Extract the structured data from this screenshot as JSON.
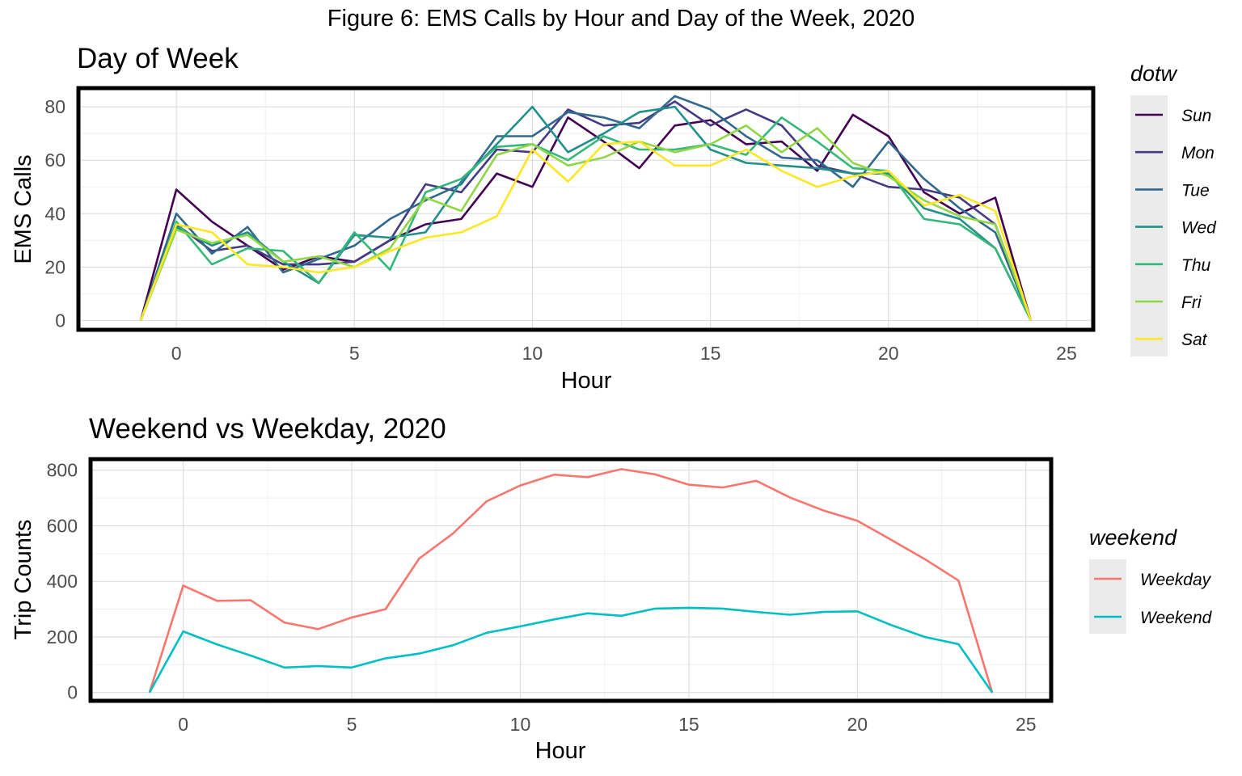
{
  "figure_title": "Figure 6: EMS Calls by Hour and Day of the Week, 2020",
  "colors": {
    "Sun": "#440154",
    "Mon": "#443A83",
    "Tue": "#31688E",
    "Wed": "#21908C",
    "Thu": "#35B779",
    "Fri": "#8FD744",
    "Sat": "#FDE725",
    "Weekday": "#F8766D",
    "Weekend": "#00BFC4",
    "grid": "#d9d9d9",
    "panel_border": "#000000",
    "legend_key_bg": "#ebebeb"
  },
  "chart_data": [
    {
      "type": "line",
      "title": "Day of Week",
      "xlabel": "Hour",
      "ylabel": "EMS Calls",
      "xlim": [
        -2.75,
        25.75
      ],
      "ylim": [
        -3.5,
        87
      ],
      "xticks": [
        0,
        5,
        10,
        15,
        20,
        25
      ],
      "yticks": [
        0,
        20,
        40,
        60,
        80
      ],
      "grid": true,
      "legend": {
        "title": "dotw",
        "position": "right"
      },
      "x": [
        -1,
        0,
        1,
        2,
        3,
        4,
        5,
        6,
        7,
        8,
        9,
        10,
        11,
        12,
        13,
        14,
        15,
        16,
        17,
        18,
        19,
        20,
        21,
        22,
        23,
        24
      ],
      "series": [
        {
          "name": "Sun",
          "values": [
            0,
            49,
            37,
            28,
            19,
            24,
            22,
            30,
            36,
            38,
            55,
            50,
            76,
            67,
            57,
            73,
            75,
            66,
            67,
            56,
            77,
            69,
            48,
            40,
            46,
            0
          ]
        },
        {
          "name": "Mon",
          "values": [
            0,
            36,
            26,
            28,
            21,
            21,
            22,
            30,
            51,
            48,
            64,
            63,
            79,
            73,
            74,
            82,
            73,
            79,
            73,
            58,
            55,
            50,
            49,
            46,
            36,
            0
          ]
        },
        {
          "name": "Tue",
          "values": [
            0,
            40,
            25,
            35,
            18,
            23,
            28,
            38,
            45,
            51,
            69,
            69,
            78,
            76,
            72,
            84,
            79,
            69,
            61,
            60,
            50,
            67,
            53,
            42,
            33,
            0
          ]
        },
        {
          "name": "Wed",
          "values": [
            0,
            35,
            28,
            33,
            22,
            14,
            32,
            31,
            33,
            52,
            66,
            80,
            63,
            70,
            78,
            80,
            64,
            59,
            58,
            57,
            55,
            55,
            42,
            38,
            27,
            0
          ]
        },
        {
          "name": "Thu",
          "values": [
            0,
            37,
            21,
            27,
            26,
            14,
            33,
            19,
            48,
            53,
            65,
            66,
            60,
            69,
            64,
            64,
            66,
            62,
            76,
            67,
            57,
            56,
            38,
            36,
            27,
            0
          ]
        },
        {
          "name": "Fri",
          "values": [
            0,
            34,
            29,
            32,
            22,
            24,
            20,
            27,
            46,
            41,
            62,
            66,
            58,
            61,
            67,
            63,
            66,
            73,
            63,
            72,
            59,
            54,
            45,
            39,
            36,
            0
          ]
        },
        {
          "name": "Sat",
          "values": [
            0,
            36,
            33,
            21,
            20,
            18,
            20,
            26,
            31,
            33,
            39,
            64,
            52,
            66,
            67,
            58,
            58,
            64,
            56,
            50,
            54,
            56,
            43,
            47,
            41,
            0
          ]
        }
      ]
    },
    {
      "type": "line",
      "title": "Weekend vs Weekday, 2020",
      "xlabel": "Hour",
      "ylabel": "Trip Counts",
      "xlim": [
        -2.75,
        25.75
      ],
      "ylim": [
        -30,
        840
      ],
      "xticks": [
        0,
        5,
        10,
        15,
        20,
        25
      ],
      "yticks": [
        0,
        200,
        400,
        600,
        800
      ],
      "grid": true,
      "legend": {
        "title": "weekend",
        "position": "right"
      },
      "x": [
        -1,
        0,
        1,
        2,
        3,
        4,
        5,
        6,
        7,
        8,
        9,
        10,
        11,
        12,
        13,
        14,
        15,
        16,
        17,
        18,
        19,
        20,
        21,
        22,
        23,
        24
      ],
      "series": [
        {
          "name": "Weekday",
          "values": [
            0,
            385,
            330,
            332,
            252,
            228,
            270,
            300,
            482,
            572,
            688,
            745,
            784,
            775,
            804,
            785,
            748,
            738,
            762,
            702,
            655,
            618,
            550,
            480,
            403,
            0
          ]
        },
        {
          "name": "Weekend",
          "values": [
            0,
            220,
            173,
            133,
            90,
            95,
            90,
            123,
            140,
            170,
            215,
            238,
            263,
            285,
            276,
            302,
            305,
            302,
            290,
            280,
            290,
            292,
            243,
            200,
            174,
            0
          ]
        }
      ]
    }
  ]
}
